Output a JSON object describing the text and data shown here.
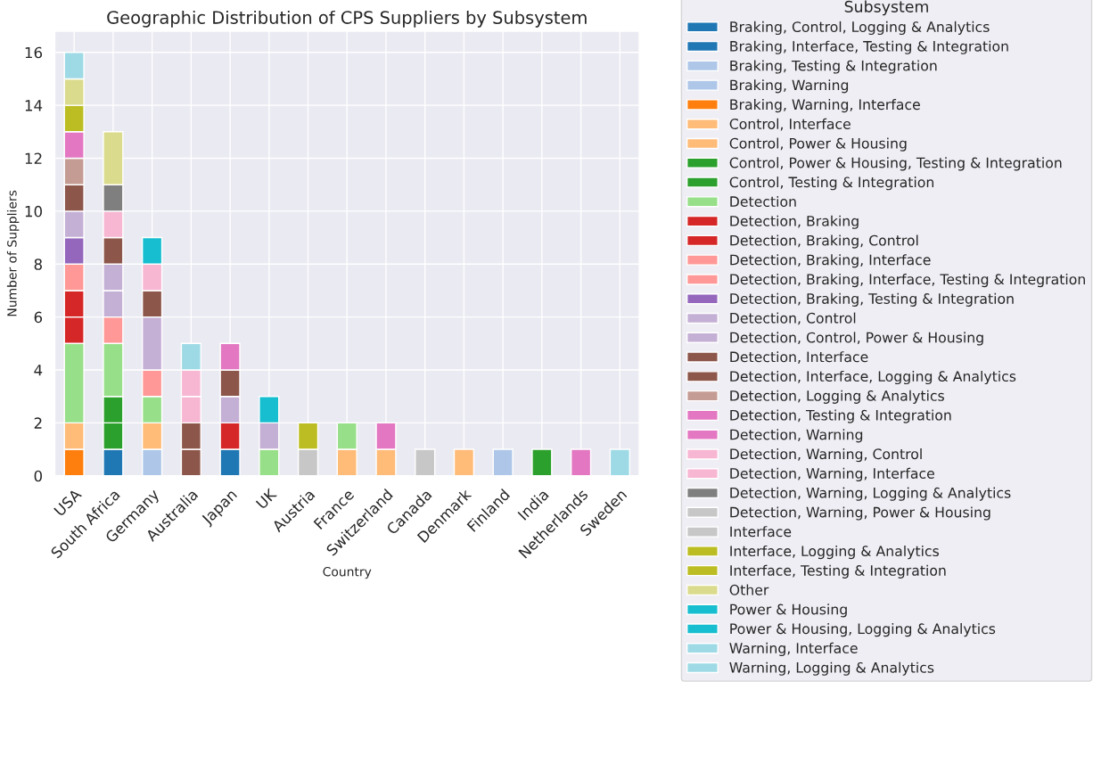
{
  "chart_data": {
    "type": "bar",
    "stacked": true,
    "title": "Geographic Distribution of CPS Suppliers by Subsystem",
    "xlabel": "Country",
    "ylabel": "Number of Suppliers",
    "legend_title": "Subsystem",
    "legend": "right",
    "grid": true,
    "categories": [
      "USA",
      "South Africa",
      "Germany",
      "Australia",
      "Japan",
      "UK",
      "Austria",
      "France",
      "Switzerland",
      "Canada",
      "Denmark",
      "Finland",
      "India",
      "Netherlands",
      "Sweden"
    ],
    "ylim": [
      0,
      16.8
    ],
    "yticks": [
      0,
      2,
      4,
      6,
      8,
      10,
      12,
      14,
      16
    ],
    "series": [
      {
        "name": "Braking, Control, Logging & Analytics",
        "color": "#1f77b4",
        "values": [
          0,
          1,
          0,
          0,
          0,
          0,
          0,
          0,
          0,
          0,
          0,
          0,
          0,
          0,
          0
        ]
      },
      {
        "name": "Braking, Interface, Testing & Integration",
        "color": "#1f77b4",
        "values": [
          0,
          0,
          0,
          0,
          1,
          0,
          0,
          0,
          0,
          0,
          0,
          0,
          0,
          0,
          0
        ]
      },
      {
        "name": "Braking, Testing & Integration",
        "color": "#aec7e8",
        "values": [
          0,
          0,
          1,
          0,
          0,
          0,
          0,
          0,
          0,
          0,
          0,
          0,
          0,
          0,
          0
        ]
      },
      {
        "name": "Braking, Warning",
        "color": "#aec7e8",
        "values": [
          0,
          0,
          0,
          0,
          0,
          0,
          0,
          0,
          0,
          0,
          0,
          1,
          0,
          0,
          0
        ]
      },
      {
        "name": "Braking, Warning, Interface",
        "color": "#ff7f0e",
        "values": [
          1,
          0,
          0,
          0,
          0,
          0,
          0,
          0,
          0,
          0,
          0,
          0,
          0,
          0,
          0
        ]
      },
      {
        "name": "Control, Interface",
        "color": "#ffbb78",
        "values": [
          1,
          0,
          0,
          0,
          0,
          0,
          0,
          1,
          0,
          0,
          1,
          0,
          0,
          0,
          0
        ]
      },
      {
        "name": "Control, Power & Housing",
        "color": "#ffbb78",
        "values": [
          0,
          0,
          1,
          0,
          0,
          0,
          0,
          0,
          1,
          0,
          0,
          0,
          0,
          0,
          0
        ]
      },
      {
        "name": "Control, Power & Housing, Testing & Integration",
        "color": "#2ca02c",
        "values": [
          0,
          1,
          0,
          0,
          0,
          0,
          0,
          0,
          0,
          0,
          0,
          0,
          0,
          0,
          0
        ]
      },
      {
        "name": "Control, Testing & Integration",
        "color": "#2ca02c",
        "values": [
          0,
          1,
          0,
          0,
          0,
          0,
          0,
          0,
          0,
          0,
          0,
          0,
          1,
          0,
          0
        ]
      },
      {
        "name": "Detection",
        "color": "#98df8a",
        "values": [
          3,
          2,
          1,
          0,
          0,
          1,
          0,
          1,
          0,
          0,
          0,
          0,
          0,
          0,
          0
        ]
      },
      {
        "name": "Detection, Braking",
        "color": "#d62728",
        "values": [
          1,
          0,
          0,
          0,
          1,
          0,
          0,
          0,
          0,
          0,
          0,
          0,
          0,
          0,
          0
        ]
      },
      {
        "name": "Detection, Braking, Control",
        "color": "#d62728",
        "values": [
          1,
          0,
          0,
          0,
          0,
          0,
          0,
          0,
          0,
          0,
          0,
          0,
          0,
          0,
          0
        ]
      },
      {
        "name": "Detection, Braking, Interface",
        "color": "#ff9896",
        "values": [
          0,
          1,
          1,
          0,
          0,
          0,
          0,
          0,
          0,
          0,
          0,
          0,
          0,
          0,
          0
        ]
      },
      {
        "name": "Detection, Braking, Interface, Testing & Integration",
        "color": "#ff9896",
        "values": [
          1,
          0,
          0,
          0,
          0,
          0,
          0,
          0,
          0,
          0,
          0,
          0,
          0,
          0,
          0
        ]
      },
      {
        "name": "Detection, Braking, Testing & Integration",
        "color": "#9467bd",
        "values": [
          1,
          0,
          0,
          0,
          0,
          0,
          0,
          0,
          0,
          0,
          0,
          0,
          0,
          0,
          0
        ]
      },
      {
        "name": "Detection, Control",
        "color": "#c5b0d5",
        "values": [
          0,
          1,
          2,
          0,
          1,
          1,
          0,
          0,
          0,
          0,
          0,
          0,
          0,
          0,
          0
        ]
      },
      {
        "name": "Detection, Control, Power & Housing",
        "color": "#c5b0d5",
        "values": [
          1,
          1,
          0,
          0,
          0,
          0,
          0,
          0,
          0,
          0,
          0,
          0,
          0,
          0,
          0
        ]
      },
      {
        "name": "Detection, Interface",
        "color": "#8c564b",
        "values": [
          0,
          1,
          1,
          1,
          1,
          0,
          0,
          0,
          0,
          0,
          0,
          0,
          0,
          0,
          0
        ]
      },
      {
        "name": "Detection, Interface, Logging & Analytics",
        "color": "#8c564b",
        "values": [
          1,
          0,
          0,
          1,
          0,
          0,
          0,
          0,
          0,
          0,
          0,
          0,
          0,
          0,
          0
        ]
      },
      {
        "name": "Detection, Logging & Analytics",
        "color": "#c49c94",
        "values": [
          1,
          0,
          0,
          0,
          0,
          0,
          0,
          0,
          0,
          0,
          0,
          0,
          0,
          0,
          0
        ]
      },
      {
        "name": "Detection, Testing & Integration",
        "color": "#e377c2",
        "values": [
          1,
          0,
          0,
          0,
          1,
          0,
          0,
          0,
          1,
          0,
          0,
          0,
          0,
          0,
          0
        ]
      },
      {
        "name": "Detection, Warning",
        "color": "#e377c2",
        "values": [
          0,
          0,
          0,
          0,
          0,
          0,
          0,
          0,
          0,
          0,
          0,
          0,
          0,
          1,
          0
        ]
      },
      {
        "name": "Detection, Warning, Control",
        "color": "#f7b6d2",
        "values": [
          0,
          1,
          1,
          1,
          0,
          0,
          0,
          0,
          0,
          0,
          0,
          0,
          0,
          0,
          0
        ]
      },
      {
        "name": "Detection, Warning, Interface",
        "color": "#f7b6d2",
        "values": [
          0,
          0,
          0,
          1,
          0,
          0,
          0,
          0,
          0,
          0,
          0,
          0,
          0,
          0,
          0
        ]
      },
      {
        "name": "Detection, Warning, Logging & Analytics",
        "color": "#7f7f7f",
        "values": [
          0,
          1,
          0,
          0,
          0,
          0,
          0,
          0,
          0,
          0,
          0,
          0,
          0,
          0,
          0
        ]
      },
      {
        "name": "Detection, Warning, Power & Housing",
        "color": "#c7c7c7",
        "values": [
          0,
          0,
          0,
          0,
          0,
          0,
          1,
          0,
          0,
          0,
          0,
          0,
          0,
          0,
          0
        ]
      },
      {
        "name": "Interface",
        "color": "#c7c7c7",
        "values": [
          0,
          0,
          0,
          0,
          0,
          0,
          0,
          0,
          0,
          1,
          0,
          0,
          0,
          0,
          0
        ]
      },
      {
        "name": "Interface, Logging & Analytics",
        "color": "#bcbd22",
        "values": [
          1,
          0,
          0,
          0,
          0,
          0,
          0,
          0,
          0,
          0,
          0,
          0,
          0,
          0,
          0
        ]
      },
      {
        "name": "Interface, Testing & Integration",
        "color": "#bcbd22",
        "values": [
          0,
          0,
          0,
          0,
          0,
          0,
          1,
          0,
          0,
          0,
          0,
          0,
          0,
          0,
          0
        ]
      },
      {
        "name": "Other",
        "color": "#dbdb8d",
        "values": [
          1,
          2,
          0,
          0,
          0,
          0,
          0,
          0,
          0,
          0,
          0,
          0,
          0,
          0,
          0
        ]
      },
      {
        "name": "Power & Housing",
        "color": "#17becf",
        "values": [
          0,
          0,
          1,
          0,
          0,
          0,
          0,
          0,
          0,
          0,
          0,
          0,
          0,
          0,
          0
        ]
      },
      {
        "name": "Power & Housing, Logging & Analytics",
        "color": "#17becf",
        "values": [
          0,
          0,
          0,
          0,
          0,
          1,
          0,
          0,
          0,
          0,
          0,
          0,
          0,
          0,
          0
        ]
      },
      {
        "name": "Warning, Interface",
        "color": "#9edae5",
        "values": [
          1,
          0,
          0,
          0,
          0,
          0,
          0,
          0,
          0,
          0,
          0,
          0,
          0,
          0,
          0
        ]
      },
      {
        "name": "Warning, Logging & Analytics",
        "color": "#9edae5",
        "values": [
          0,
          0,
          0,
          1,
          0,
          0,
          0,
          0,
          0,
          0,
          0,
          0,
          0,
          0,
          1
        ]
      }
    ]
  }
}
